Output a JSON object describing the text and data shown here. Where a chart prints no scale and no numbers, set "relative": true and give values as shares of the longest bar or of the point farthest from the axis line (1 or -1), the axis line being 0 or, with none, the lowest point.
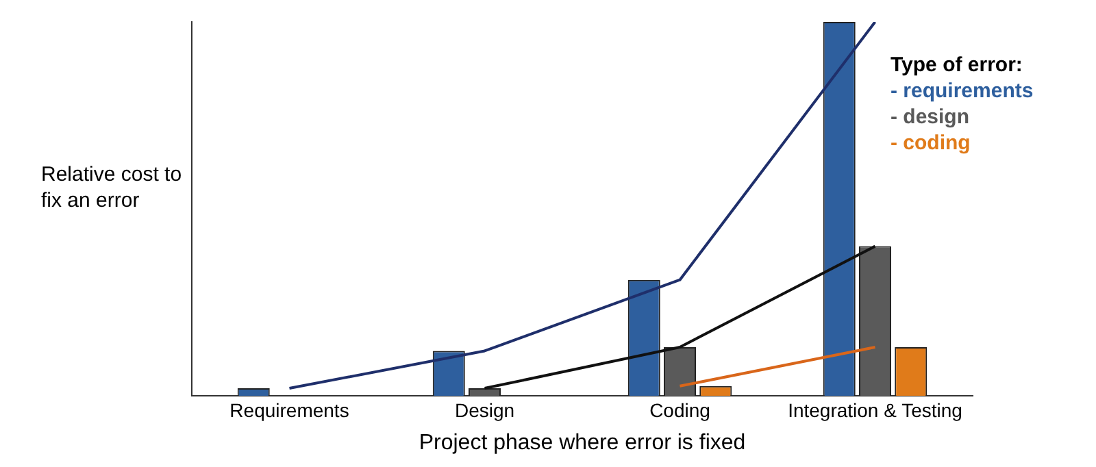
{
  "chart_data": {
    "type": "bar",
    "relative": true,
    "xlabel": "Project phase where error is fixed",
    "ylabel": "Relative cost to fix an error",
    "legend_title": "Type of error:",
    "legend": "top right",
    "grid": false,
    "categories": [
      "Requirements",
      "Design",
      "Coding",
      "Integration & Testing"
    ],
    "series": [
      {
        "name": "- requirements",
        "color": "#2e5f9e",
        "values": [
          0.02,
          0.12,
          0.31,
          1
        ]
      },
      {
        "name": "- design",
        "color": "#5a5a5a",
        "values": [
          null,
          0.02,
          0.13,
          0.4
        ]
      },
      {
        "name": "- coding",
        "color": "#e07b1a",
        "values": [
          null,
          null,
          0.026,
          0.13
        ]
      },
      {
        "type": "line",
        "color": "#1f2f6b",
        "values": [
          0.02,
          0.12,
          0.31,
          1
        ]
      },
      {
        "type": "line",
        "color": "#111111",
        "values": [
          null,
          0.02,
          0.13,
          0.4
        ]
      },
      {
        "type": "line",
        "color": "#d9661a",
        "values": [
          null,
          null,
          0.026,
          0.13
        ]
      }
    ]
  }
}
